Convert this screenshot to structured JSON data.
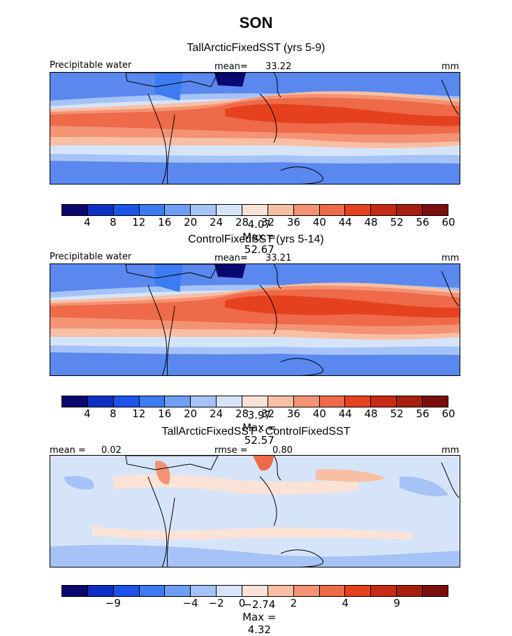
{
  "title": "SON",
  "palette_full": [
    "#08086e",
    "#0d2fc4",
    "#1c53e8",
    "#3d7bf2",
    "#6e9ef5",
    "#a6c3f7",
    "#d6e4f9",
    "#fbe2d6",
    "#f8bfa4",
    "#f39374",
    "#ee6a48",
    "#e5411f",
    "#c82b14",
    "#a81f10",
    "#7d0d0d"
  ],
  "palette_diff": [
    "#08086e",
    "#0d2fc4",
    "#1c53e8",
    "#3d7bf2",
    "#6e9ef5",
    "#a6c3f7",
    "#d6e4f9",
    "#fbe2d6",
    "#f8bfa4",
    "#f39374",
    "#ee6a48",
    "#e5411f",
    "#c82b14",
    "#a81f10",
    "#7d0d0d"
  ],
  "chart_data": [
    {
      "type": "heatmap",
      "title": "TallArcticFixedSST (yrs 5-9)",
      "variable_label": "Precipitable water",
      "mean_label": "mean=",
      "mean_value": "33.22",
      "units": "mm",
      "min_label": "Min =",
      "min_value": "4.07",
      "max_label": "Max =",
      "max_value": "52.67",
      "colorbar_ticks": [
        "4",
        "8",
        "12",
        "16",
        "20",
        "24",
        "28",
        "32",
        "36",
        "40",
        "44",
        "48",
        "52",
        "56",
        "60"
      ],
      "colorbar_levels": [
        4,
        8,
        12,
        16,
        20,
        24,
        28,
        32,
        36,
        40,
        44,
        48,
        52,
        56,
        60
      ]
    },
    {
      "type": "heatmap",
      "title": "ControlFixedSST (yrs 5-14)",
      "variable_label": "Precipitable water",
      "mean_label": "mean=",
      "mean_value": "33.21",
      "units": "mm",
      "min_label": "Min =",
      "min_value": "3.97",
      "max_label": "Max =",
      "max_value": "52.57",
      "colorbar_ticks": [
        "4",
        "8",
        "12",
        "16",
        "20",
        "24",
        "28",
        "32",
        "36",
        "40",
        "44",
        "48",
        "52",
        "56",
        "60"
      ],
      "colorbar_levels": [
        4,
        8,
        12,
        16,
        20,
        24,
        28,
        32,
        36,
        40,
        44,
        48,
        52,
        56,
        60
      ]
    },
    {
      "type": "heatmap",
      "title": "TallArcticFixedSST - ControlFixedSST",
      "mean_label": "mean =",
      "mean_value": "0.02",
      "rmse_label": "rmse =",
      "rmse_value": "0.80",
      "units": "mm",
      "min_label": "Min =",
      "min_value": "−2.74",
      "max_label": "Max =",
      "max_value": "4.32",
      "colorbar_ticks": [
        "−9",
        "−4",
        "−2",
        "0",
        "2",
        "4",
        "9"
      ],
      "colorbar_levels": [
        -9,
        -4,
        -2,
        0,
        2,
        4,
        9
      ]
    }
  ]
}
